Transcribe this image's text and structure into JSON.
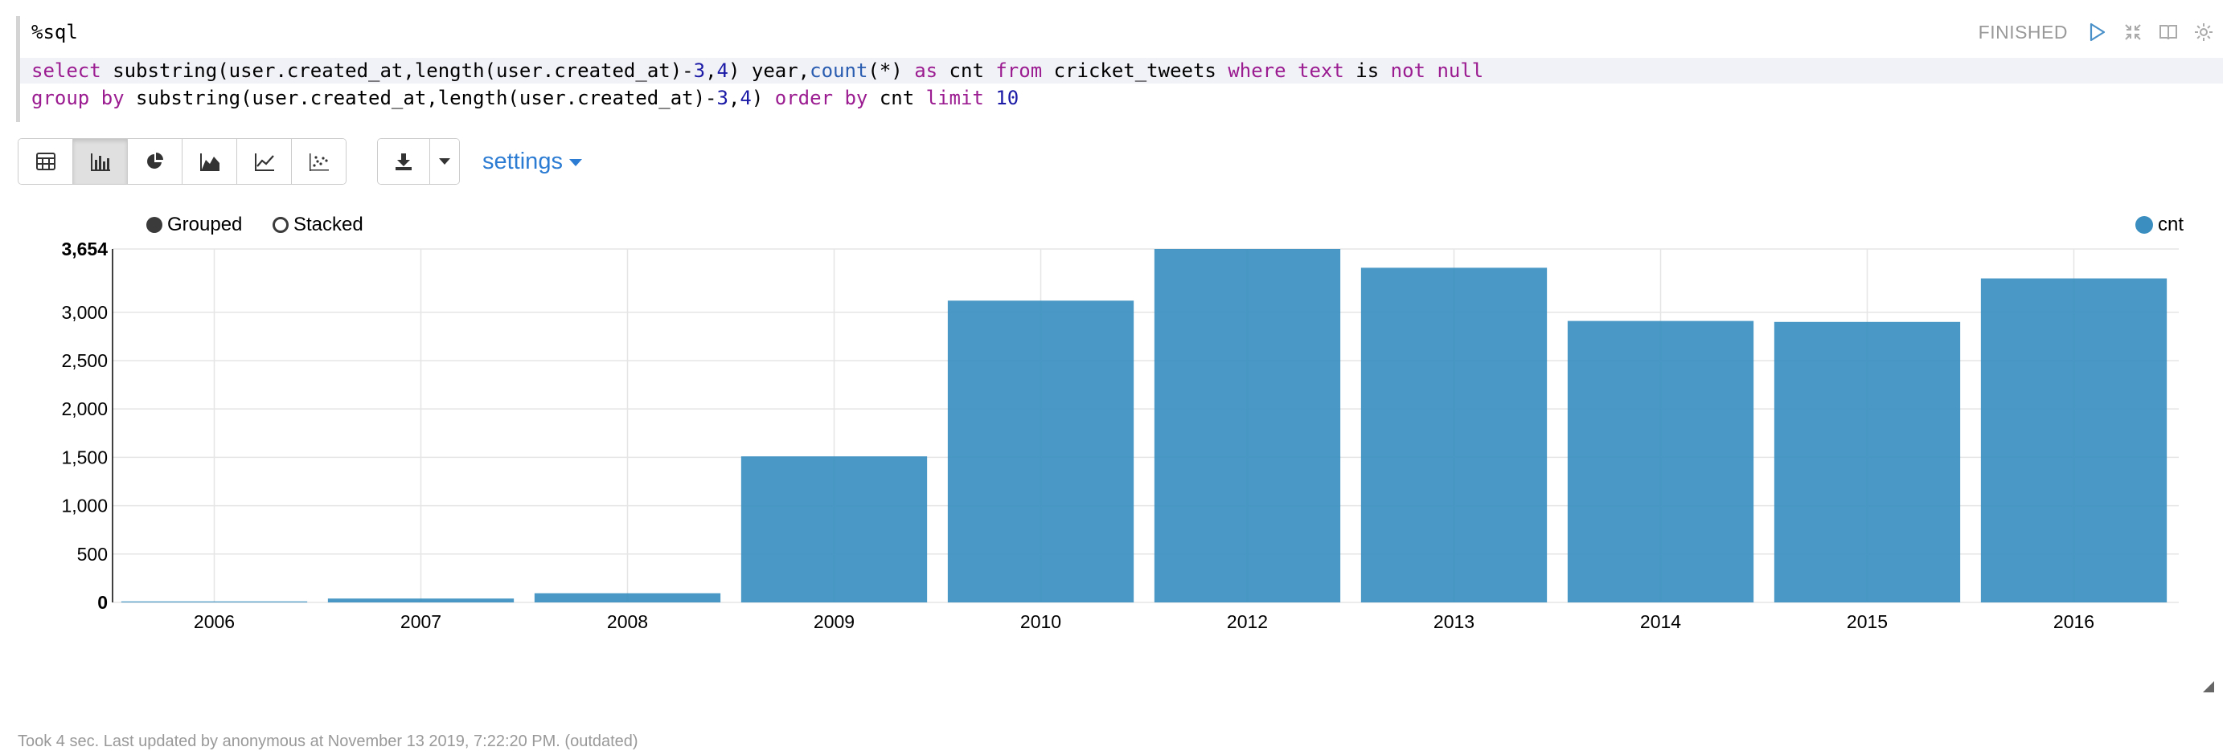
{
  "editor": {
    "magic": "%sql",
    "line1": [
      {
        "t": "select",
        "c": "kw"
      },
      {
        "t": " substring(user.created_at,length(user.created_at)-",
        "c": ""
      },
      {
        "t": "3",
        "c": "num"
      },
      {
        "t": ",",
        "c": ""
      },
      {
        "t": "4",
        "c": "num"
      },
      {
        "t": ") year,",
        "c": ""
      },
      {
        "t": "count",
        "c": "fn"
      },
      {
        "t": "(*) ",
        "c": ""
      },
      {
        "t": "as",
        "c": "kw"
      },
      {
        "t": " cnt ",
        "c": ""
      },
      {
        "t": "from",
        "c": "kw"
      },
      {
        "t": " cricket_tweets ",
        "c": ""
      },
      {
        "t": "where",
        "c": "kw"
      },
      {
        "t": " ",
        "c": ""
      },
      {
        "t": "text",
        "c": "kw"
      },
      {
        "t": " is ",
        "c": ""
      },
      {
        "t": "not",
        "c": "kw"
      },
      {
        "t": " ",
        "c": ""
      },
      {
        "t": "null",
        "c": "kw"
      }
    ],
    "line2": [
      {
        "t": "group by",
        "c": "kw"
      },
      {
        "t": " substring(user.created_at,length(user.created_at)-",
        "c": ""
      },
      {
        "t": "3",
        "c": "num"
      },
      {
        "t": ",",
        "c": ""
      },
      {
        "t": "4",
        "c": "num"
      },
      {
        "t": ") ",
        "c": ""
      },
      {
        "t": "order by",
        "c": "kw"
      },
      {
        "t": " cnt ",
        "c": ""
      },
      {
        "t": "limit",
        "c": "kw"
      },
      {
        "t": " ",
        "c": ""
      },
      {
        "t": "10",
        "c": "num"
      }
    ]
  },
  "status": {
    "text": "FINISHED"
  },
  "toolbar": {
    "settings_label": "settings"
  },
  "radios": {
    "grouped_label": "Grouped",
    "stacked_label": "Stacked"
  },
  "footer": {
    "text": "Took 4 sec. Last updated by anonymous at November 13 2019, 7:22:20 PM. (outdated)"
  },
  "colors": {
    "bar": "#3a8fc0",
    "link": "#2c7cd3"
  },
  "chart_data": {
    "type": "bar",
    "categories": [
      "2006",
      "2007",
      "2008",
      "2009",
      "2010",
      "2012",
      "2013",
      "2014",
      "2015",
      "2016"
    ],
    "series": [
      {
        "name": "cnt",
        "values": [
          10,
          40,
          95,
          1510,
          3120,
          3654,
          3460,
          2910,
          2900,
          3350
        ]
      }
    ],
    "ylim": [
      0,
      3654
    ],
    "yticks": [
      0,
      500,
      1000,
      1500,
      2000,
      2500,
      3000
    ],
    "ymax_label": "3,654",
    "grid": true,
    "legend": "top-right",
    "mode": "grouped"
  }
}
